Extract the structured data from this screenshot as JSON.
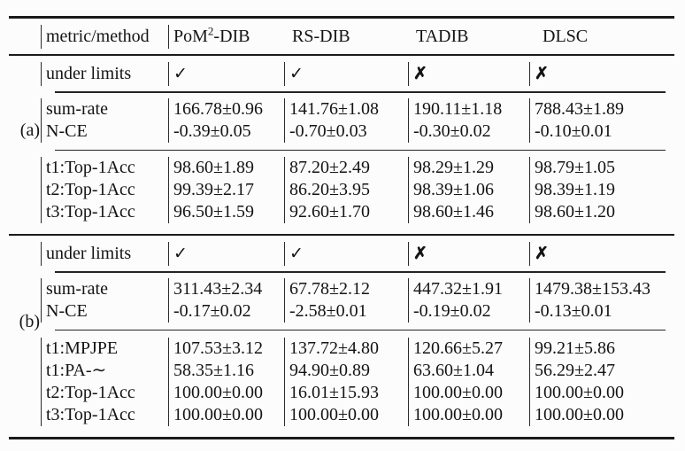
{
  "table": {
    "header": {
      "metric_label": "metric/method",
      "methods": [
        {
          "pre": "PoM",
          "sup": "2",
          "post": "-DIB"
        },
        {
          "pre": "RS-DIB",
          "sup": "",
          "post": ""
        },
        {
          "pre": "TADIB",
          "sup": "",
          "post": ""
        },
        {
          "pre": "DLSC",
          "sup": "",
          "post": ""
        }
      ]
    },
    "under_limits_label": "under limits",
    "sections": [
      {
        "label": "(a)",
        "under_limits": [
          "✓",
          "✓",
          "✗",
          "✗"
        ],
        "groups": [
          {
            "rows": [
              {
                "metric": "sum-rate",
                "values": [
                  "166.78±0.96",
                  "141.76±1.08",
                  "190.11±1.18",
                  "788.43±1.89"
                ]
              },
              {
                "metric": "N-CE",
                "values": [
                  "-0.39±0.05",
                  "-0.70±0.03",
                  "-0.30±0.02",
                  "-0.10±0.01"
                ]
              }
            ]
          },
          {
            "rows": [
              {
                "metric": "t1:Top-1Acc",
                "values": [
                  "98.60±1.89",
                  "87.20±2.49",
                  "98.29±1.29",
                  "98.79±1.05"
                ]
              },
              {
                "metric": "t2:Top-1Acc",
                "values": [
                  "99.39±2.17",
                  "86.20±3.95",
                  "98.39±1.06",
                  "98.39±1.19"
                ]
              },
              {
                "metric": "t3:Top-1Acc",
                "values": [
                  "96.50±1.59",
                  "92.60±1.70",
                  "98.60±1.46",
                  "98.60±1.20"
                ]
              }
            ]
          }
        ]
      },
      {
        "label": "(b)",
        "under_limits": [
          "✓",
          "✓",
          "✗",
          "✗"
        ],
        "groups": [
          {
            "rows": [
              {
                "metric": "sum-rate",
                "values": [
                  "311.43±2.34",
                  "67.78±2.12",
                  "447.32±1.91",
                  "1479.38±153.43"
                ]
              },
              {
                "metric": "N-CE",
                "values": [
                  "-0.17±0.02",
                  "-2.58±0.01",
                  "-0.19±0.02",
                  "-0.13±0.01"
                ]
              }
            ]
          },
          {
            "rows": [
              {
                "metric": "t1:MPJPE",
                "values": [
                  "107.53±3.12",
                  "137.72±4.80",
                  "120.66±5.27",
                  "99.21±5.86"
                ]
              },
              {
                "metric": "t1:PA-∼",
                "values": [
                  "58.35±1.16",
                  "94.90±0.89",
                  "63.60±1.04",
                  "56.29±2.47"
                ]
              },
              {
                "metric": "t2:Top-1Acc",
                "values": [
                  "100.00±0.00",
                  "16.01±15.93",
                  "100.00±0.00",
                  "100.00±0.00"
                ]
              },
              {
                "metric": "t3:Top-1Acc",
                "values": [
                  "100.00±0.00",
                  "100.00±0.00",
                  "100.00±0.00",
                  "100.00±0.00"
                ]
              }
            ]
          }
        ]
      }
    ]
  }
}
